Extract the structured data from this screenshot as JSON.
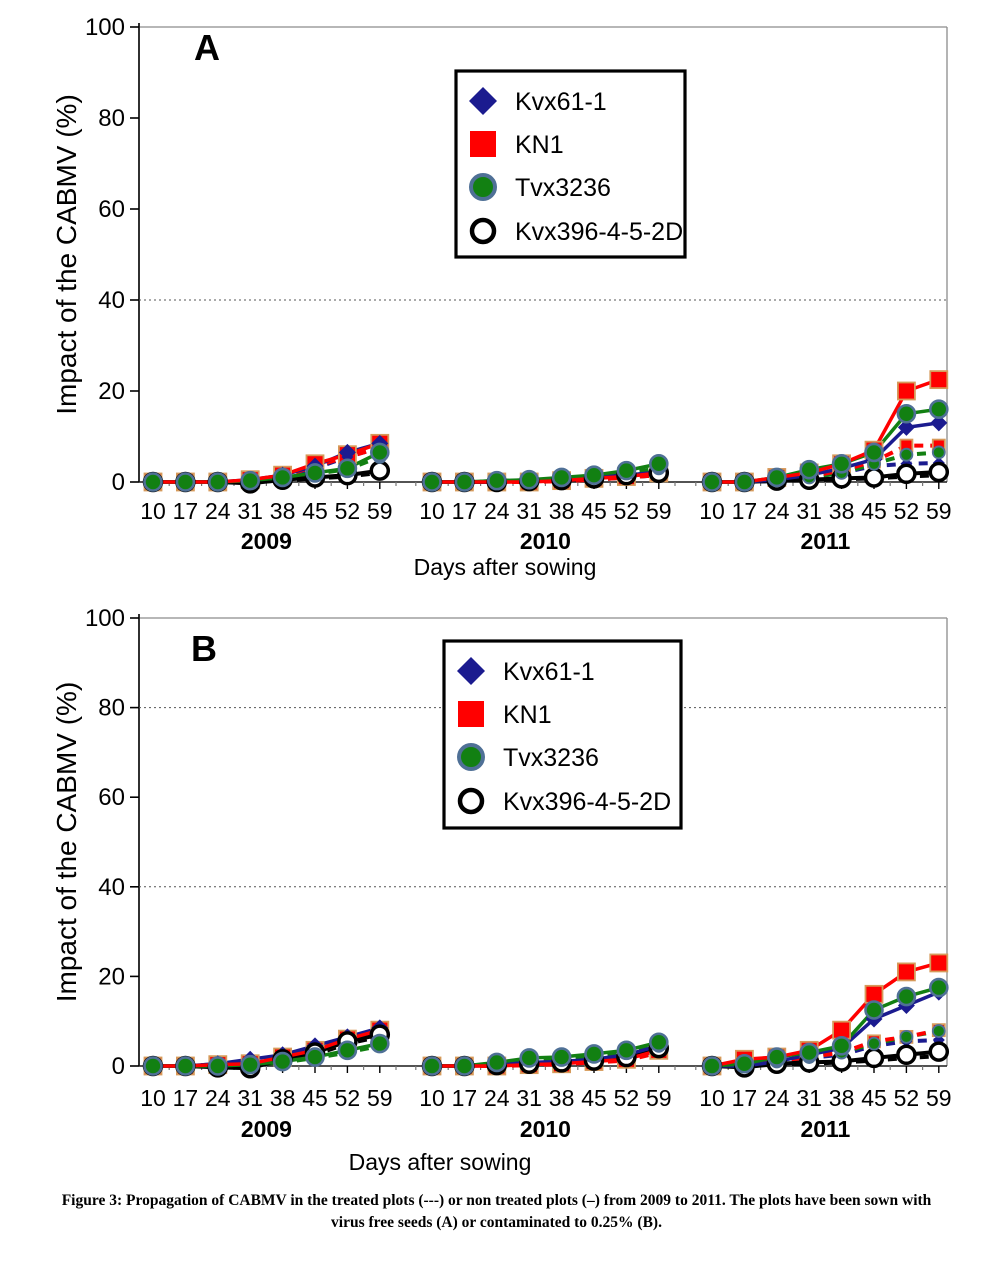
{
  "figure": {
    "caption_line1": "Figure 3: Propagation of CABMV in the treated plots (---) or non treated plots (–)  from 2009 to 2011. The plots have been sown with",
    "caption_line2": "virus free seeds (A) or contaminated to 0.25% (B)."
  },
  "colors": {
    "kvx61_1": "#1b1b8f",
    "kn1": "#ff0000",
    "kn1_marker_border": "#d69a5a",
    "tvx3236": "#128012",
    "tvx3236_marker_border": "#4f7096",
    "kvx396": "#000000",
    "grid": "#555555",
    "plot_border": "#8c8c8c"
  },
  "chart_data": [
    {
      "type": "line",
      "panel_label": "A",
      "title": "",
      "xlabel": "Days after sowing",
      "ylabel": "Impact of the CABMV (%)",
      "ylim": [
        0,
        100
      ],
      "y_ticks": [
        0,
        20,
        40,
        60,
        80,
        100
      ],
      "gridlines_at": [
        40
      ],
      "x_days": [
        10,
        17,
        24,
        31,
        38,
        45,
        52,
        59
      ],
      "year_groups": [
        "2009",
        "2010",
        "2011"
      ],
      "legend_position": "top-center-inside",
      "legend": [
        {
          "label": "Kvx61-1",
          "marker": "diamond"
        },
        {
          "label": "KN1",
          "marker": "square"
        },
        {
          "label": "Tvx3236",
          "marker": "circle"
        },
        {
          "label": "Kvx396-4-5-2D",
          "marker": "open-circle"
        }
      ],
      "series": [
        {
          "name": "Kvx396-4-5-2D treated",
          "genotype": "Kvx396-4-5-2D",
          "treatment": "treated",
          "line": "dashed",
          "marker": "none",
          "color": "#000000",
          "values": {
            "2009": [
              0,
              0,
              0,
              0,
              0.3,
              0.8,
              1.2,
              2
            ],
            "2010": [
              0,
              0,
              0,
              0,
              0.3,
              0.5,
              1,
              1.5
            ],
            "2011": [
              0,
              0,
              0.2,
              0.4,
              0.6,
              0.8,
              1.2,
              1.5
            ]
          }
        },
        {
          "name": "Kvx61-1 treated",
          "genotype": "Kvx61-1",
          "treatment": "treated",
          "line": "dashed",
          "marker": "diamond",
          "color": "#1b1b8f",
          "values": {
            "2009": [
              0,
              0,
              0,
              0.3,
              1.2,
              3,
              5.5,
              7.5
            ],
            "2010": [
              0,
              0,
              0,
              0.2,
              0.4,
              0.8,
              1.2,
              1.8
            ],
            "2011": [
              0,
              0,
              0.3,
              1,
              2,
              3.5,
              4,
              4.2
            ]
          }
        },
        {
          "name": "Tvx3236 treated",
          "genotype": "Tvx3236",
          "treatment": "treated",
          "line": "dashed",
          "marker": "circle",
          "color": "#128012",
          "values": {
            "2009": [
              0,
              0,
              0,
              0.2,
              0.8,
              1.8,
              2.8,
              5.5
            ],
            "2010": [
              0,
              0,
              0.2,
              0.4,
              0.8,
              1.2,
              2,
              3
            ],
            "2011": [
              0,
              0,
              0.4,
              1,
              2,
              4,
              6,
              6.5
            ]
          }
        },
        {
          "name": "KN1 treated",
          "genotype": "KN1",
          "treatment": "treated",
          "line": "dashed",
          "marker": "square",
          "color": "#ff0000",
          "values": {
            "2009": [
              0,
              0,
              0,
              0.3,
              1.2,
              3.5,
              5.5,
              7.5
            ],
            "2010": [
              0,
              0,
              0,
              0,
              0.2,
              0.5,
              1,
              1.5
            ],
            "2011": [
              0,
              0,
              0.5,
              1.2,
              2.5,
              4.5,
              8,
              8
            ]
          }
        },
        {
          "name": "Kvx396-4-5-2D non treated",
          "genotype": "Kvx396-4-5-2D",
          "treatment": "non-treated",
          "line": "solid",
          "marker": "open-circle",
          "color": "#000000",
          "values": {
            "2009": [
              0,
              0,
              0,
              -0.3,
              0.5,
              1,
              1.5,
              2.5
            ],
            "2010": [
              0,
              0,
              0,
              0.2,
              0.4,
              0.8,
              1.5,
              2
            ],
            "2011": [
              0,
              0,
              0.3,
              0.5,
              0.8,
              1,
              1.8,
              2.2
            ]
          }
        },
        {
          "name": "Kvx61-1 non treated",
          "genotype": "Kvx61-1",
          "treatment": "non-treated",
          "line": "solid",
          "marker": "diamond",
          "color": "#1b1b8f",
          "values": {
            "2009": [
              0,
              0,
              0,
              0.5,
              1.5,
              3.5,
              6.5,
              8.5
            ],
            "2010": [
              0,
              0,
              0,
              0.2,
              0.5,
              1,
              1.5,
              2.2
            ],
            "2011": [
              0,
              0,
              0.5,
              1.5,
              3,
              5,
              12,
              13
            ]
          }
        },
        {
          "name": "Tvx3236 non treated",
          "genotype": "Tvx3236",
          "treatment": "non-treated",
          "line": "solid",
          "marker": "circle",
          "color": "#128012",
          "values": {
            "2009": [
              0,
              0,
              0,
              0.3,
              1,
              2,
              3,
              6.5
            ],
            "2010": [
              0,
              0,
              0.3,
              0.5,
              1,
              1.5,
              2.5,
              4
            ],
            "2011": [
              0,
              0,
              1,
              2.7,
              4,
              6.5,
              15,
              16
            ]
          }
        },
        {
          "name": "KN1 non treated",
          "genotype": "KN1",
          "treatment": "non-treated",
          "line": "solid",
          "marker": "square",
          "color": "#ff0000",
          "values": {
            "2009": [
              0,
              0,
              0,
              0.5,
              1.5,
              4,
              6,
              8.5
            ],
            "2010": [
              0,
              0,
              0,
              0,
              0.3,
              0.8,
              1.2,
              2
            ],
            "2011": [
              0,
              0,
              1,
              2,
              4,
              7,
              20,
              22.5
            ]
          }
        }
      ]
    },
    {
      "type": "line",
      "panel_label": "B",
      "title": "",
      "xlabel": "Days after sowing",
      "ylabel": "Impact of the CABMV (%)",
      "ylim": [
        0,
        100
      ],
      "y_ticks": [
        0,
        20,
        40,
        60,
        80,
        100
      ],
      "gridlines_at": [
        40,
        80
      ],
      "x_days": [
        10,
        17,
        24,
        31,
        38,
        45,
        52,
        59
      ],
      "year_groups": [
        "2009",
        "2010",
        "2011"
      ],
      "legend_position": "top-center-inside",
      "legend": [
        {
          "label": "Kvx61-1",
          "marker": "diamond"
        },
        {
          "label": "KN1",
          "marker": "square"
        },
        {
          "label": "Tvx3236",
          "marker": "circle"
        },
        {
          "label": "Kvx396-4-5-2D",
          "marker": "open-circle"
        }
      ],
      "series": [
        {
          "name": "Kvx396-4-5-2D treated",
          "genotype": "Kvx396-4-5-2D",
          "treatment": "treated",
          "line": "dashed",
          "marker": "none",
          "color": "#000000",
          "values": {
            "2009": [
              0,
              0,
              0,
              0,
              1.2,
              2.5,
              5,
              6.5
            ],
            "2010": [
              0,
              0,
              0,
              0.3,
              0.6,
              1,
              1.5,
              3
            ],
            "2011": [
              0,
              0,
              0.3,
              0.5,
              0.8,
              1.2,
              1.8,
              2.2
            ]
          }
        },
        {
          "name": "Kvx61-1 treated",
          "genotype": "Kvx61-1",
          "treatment": "treated",
          "line": "dashed",
          "marker": "diamond",
          "color": "#1b1b8f",
          "values": {
            "2009": [
              0,
              0,
              0.4,
              1.2,
              2.2,
              4,
              6,
              7.5
            ],
            "2010": [
              0,
              0,
              0.2,
              0.6,
              0.8,
              1.2,
              2,
              3.5
            ],
            "2011": [
              0,
              0,
              0.8,
              1.8,
              2.5,
              4.5,
              5.5,
              5.8
            ]
          }
        },
        {
          "name": "Tvx3236 treated",
          "genotype": "Tvx3236",
          "treatment": "treated",
          "line": "dashed",
          "marker": "circle",
          "color": "#128012",
          "values": {
            "2009": [
              0,
              0,
              0,
              0.2,
              0.8,
              1.8,
              3,
              4.5
            ],
            "2010": [
              0,
              0,
              0.6,
              1.5,
              1.8,
              2.2,
              3,
              4.5
            ],
            "2011": [
              0,
              0.3,
              1,
              2,
              3,
              5,
              6.5,
              7.8
            ]
          }
        },
        {
          "name": "KN1 treated",
          "genotype": "KN1",
          "treatment": "treated",
          "line": "dashed",
          "marker": "square",
          "color": "#ff0000",
          "values": {
            "2009": [
              0,
              0,
              0.2,
              0.5,
              1.8,
              3,
              5.5,
              7.5
            ],
            "2010": [
              0,
              0,
              0,
              0.2,
              0.4,
              0.8,
              1.2,
              3
            ],
            "2011": [
              0,
              0.5,
              1,
              2,
              3,
              5.5,
              6.5,
              8
            ]
          }
        },
        {
          "name": "Kvx396-4-5-2D non treated",
          "genotype": "Kvx396-4-5-2D",
          "treatment": "non-treated",
          "line": "solid",
          "marker": "open-circle",
          "color": "#000000",
          "values": {
            "2009": [
              0,
              0,
              -0.3,
              -0.5,
              1.5,
              3,
              5.5,
              7
            ],
            "2010": [
              0,
              0,
              0.2,
              0.5,
              0.8,
              1.2,
              2,
              4
            ],
            "2011": [
              0,
              -0.3,
              0.5,
              0.8,
              1,
              1.8,
              2.5,
              3.2
            ]
          }
        },
        {
          "name": "Kvx61-1 non treated",
          "genotype": "Kvx61-1",
          "treatment": "non-treated",
          "line": "solid",
          "marker": "diamond",
          "color": "#1b1b8f",
          "values": {
            "2009": [
              0,
              0,
              0.5,
              1.5,
              2.5,
              4.5,
              6.5,
              8.5
            ],
            "2010": [
              0,
              0,
              0.3,
              0.8,
              1,
              1.5,
              2.5,
              4.5
            ],
            "2011": [
              0,
              0,
              1,
              2.5,
              4,
              10.5,
              13.5,
              16.5
            ]
          }
        },
        {
          "name": "Tvx3236 non treated",
          "genotype": "Tvx3236",
          "treatment": "non-treated",
          "line": "solid",
          "marker": "circle",
          "color": "#128012",
          "values": {
            "2009": [
              0,
              0,
              0,
              0.3,
              1,
              2,
              3.5,
              5
            ],
            "2010": [
              0,
              0,
              0.8,
              1.8,
              2,
              2.7,
              3.5,
              5.3
            ],
            "2011": [
              0,
              0.5,
              2,
              3,
              4.5,
              12.5,
              15.5,
              17.5
            ]
          }
        },
        {
          "name": "KN1 non treated",
          "genotype": "KN1",
          "treatment": "non-treated",
          "line": "solid",
          "marker": "square",
          "color": "#ff0000",
          "values": {
            "2009": [
              0,
              0,
              0.3,
              0.5,
              2,
              3.5,
              6,
              8
            ],
            "2010": [
              0,
              0,
              0,
              0.3,
              0.5,
              1,
              1.5,
              3.5
            ],
            "2011": [
              0,
              1.5,
              2,
              3.5,
              8,
              16,
              21,
              23
            ]
          }
        }
      ]
    }
  ]
}
